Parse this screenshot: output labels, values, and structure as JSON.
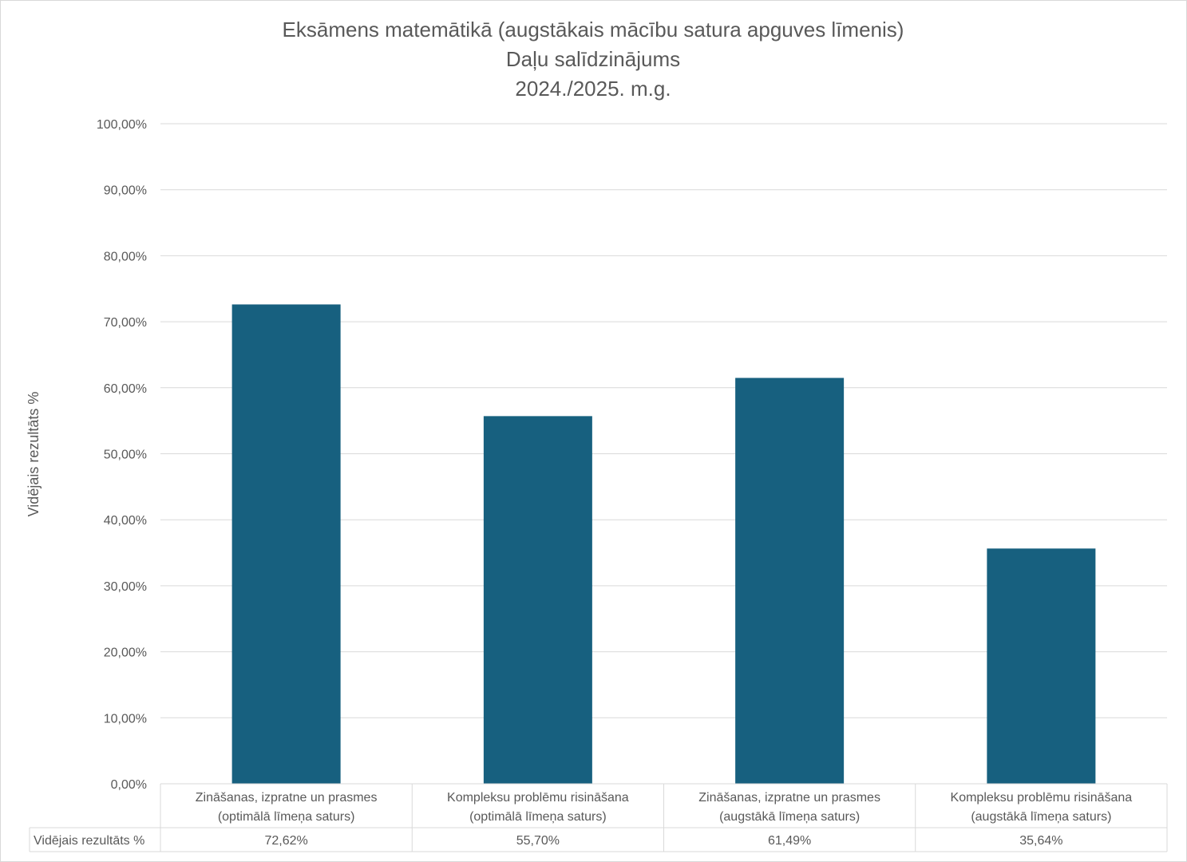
{
  "chart_data": {
    "type": "bar",
    "title": [
      "Eksāmens matemātikā (augstākais mācību satura apguves līmenis)",
      "Daļu salīdzinājums",
      "2024./2025. m.g."
    ],
    "xlabel": "",
    "ylabel": "Vidējais rezultāts %",
    "ylim": [
      0,
      100
    ],
    "yticks": [
      "0,00%",
      "10,00%",
      "20,00%",
      "30,00%",
      "40,00%",
      "50,00%",
      "60,00%",
      "70,00%",
      "80,00%",
      "90,00%",
      "100,00%"
    ],
    "grid": true,
    "categories": [
      [
        "Zināšanas, izpratne un prasmes",
        "(optimālā līmeņa saturs)"
      ],
      [
        "Kompleksu problēmu risināšana",
        "(optimālā līmeņa saturs)"
      ],
      [
        "Zināšanas, izpratne un prasmes",
        "(augstākā līmeņa saturs)"
      ],
      [
        "Kompleksu problēmu risināšana",
        "(augstākā līmeņa saturs)"
      ]
    ],
    "series": [
      {
        "name": "Vidējais rezultāts %",
        "values": [
          72.62,
          55.7,
          61.49,
          35.64
        ],
        "labels": [
          "72,62%",
          "55,70%",
          "61,49%",
          "35,64%"
        ],
        "color": "#17607f"
      }
    ],
    "data_table": true
  }
}
